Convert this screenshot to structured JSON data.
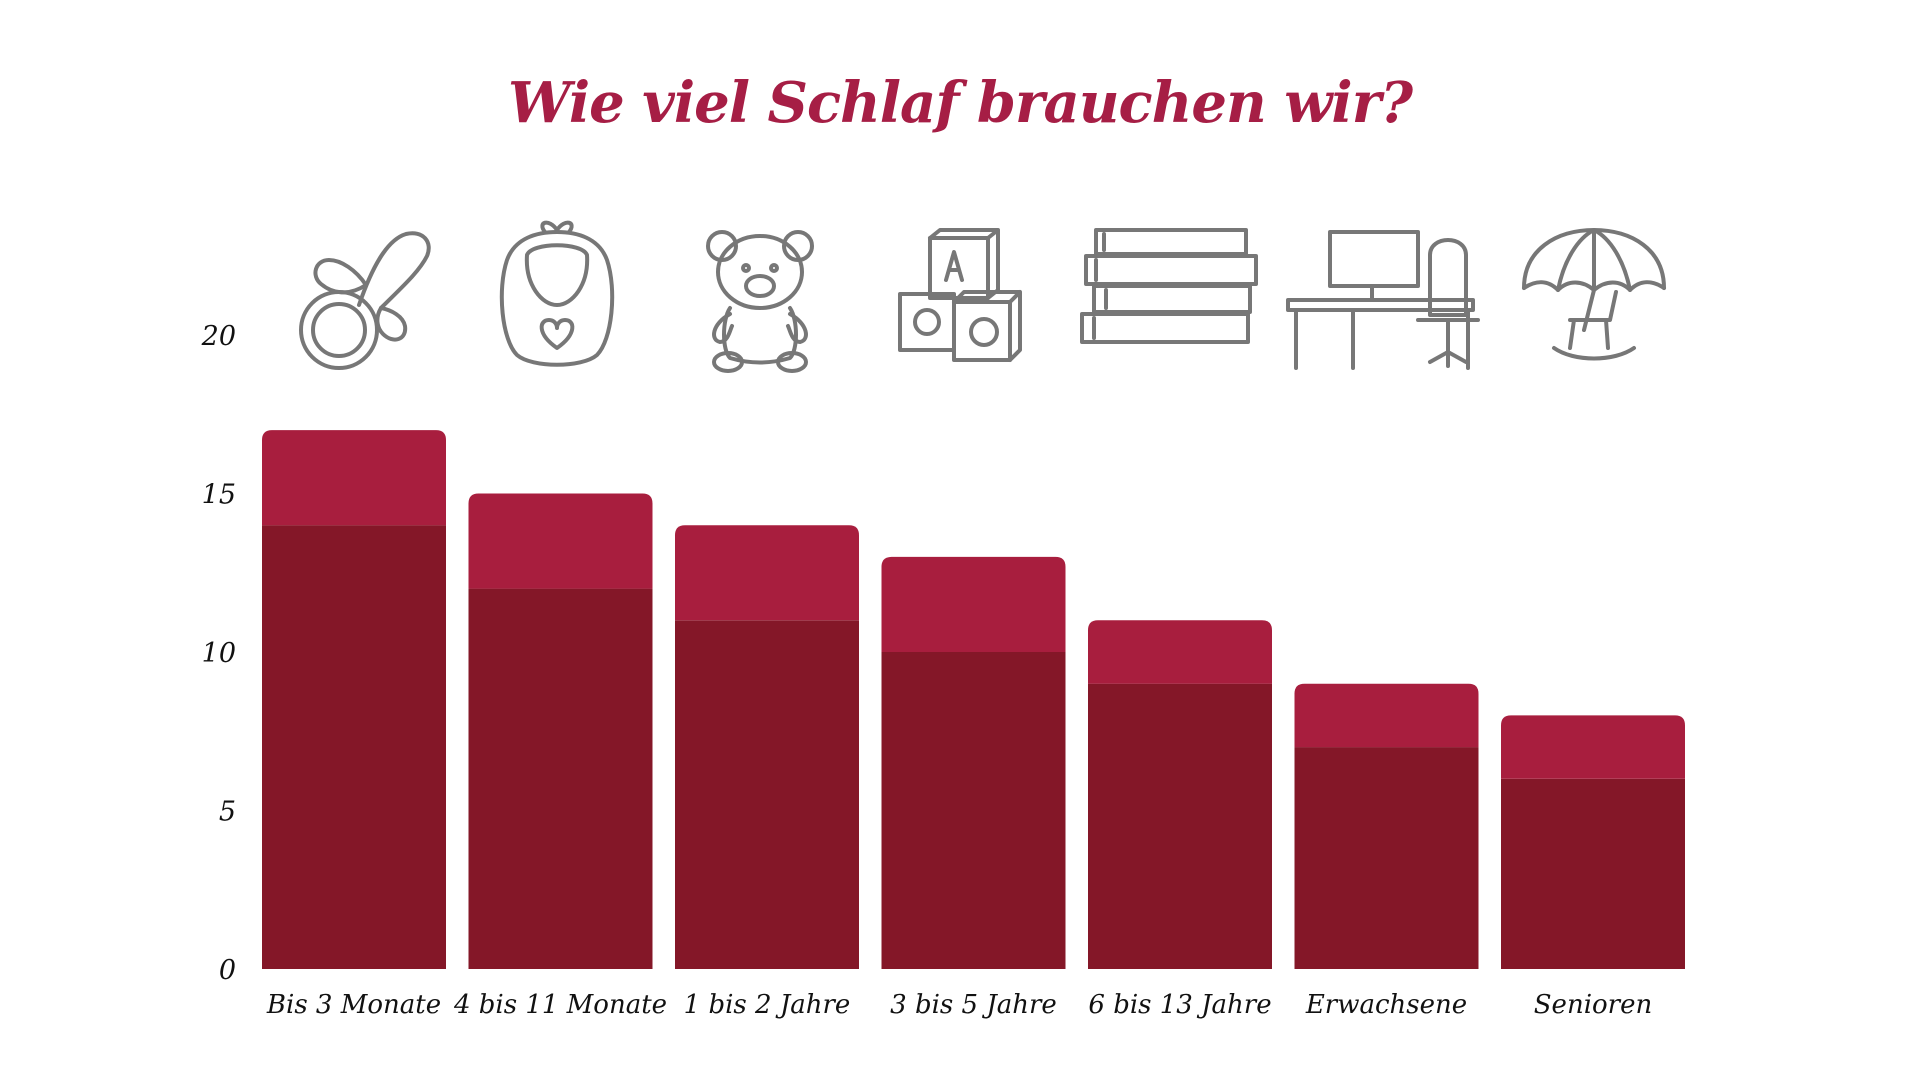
{
  "chart_data": {
    "type": "bar",
    "stacked": true,
    "title": "Wie viel Schlaf brauchen wir?",
    "xlabel": "",
    "ylabel": "",
    "ylim": [
      0,
      20
    ],
    "yticks": [
      0,
      5,
      10,
      15,
      20
    ],
    "grid": false,
    "categories": [
      "Bis 3 Monate",
      "4 bis 11 Monate",
      "1 bis 2 Jahre",
      "3 bis 5 Jahre",
      "6 bis 13 Jahre",
      "Erwachsene",
      "Senioren"
    ],
    "series": [
      {
        "values": [
          14,
          12,
          11,
          10,
          9,
          7,
          6
        ]
      },
      {
        "values": [
          3,
          3,
          3,
          3,
          2,
          2,
          2
        ]
      }
    ],
    "category_icons": [
      "pacifier-icon",
      "bib-icon",
      "teddy-bear-icon",
      "toy-blocks-icon",
      "books-icon",
      "desk-chair-icon",
      "umbrella-rocking-chair-icon"
    ]
  },
  "colors": {
    "title": "#a61e45",
    "base": "#841728",
    "top": "#a81e3e",
    "icon": "#777777",
    "text": "#111111"
  }
}
